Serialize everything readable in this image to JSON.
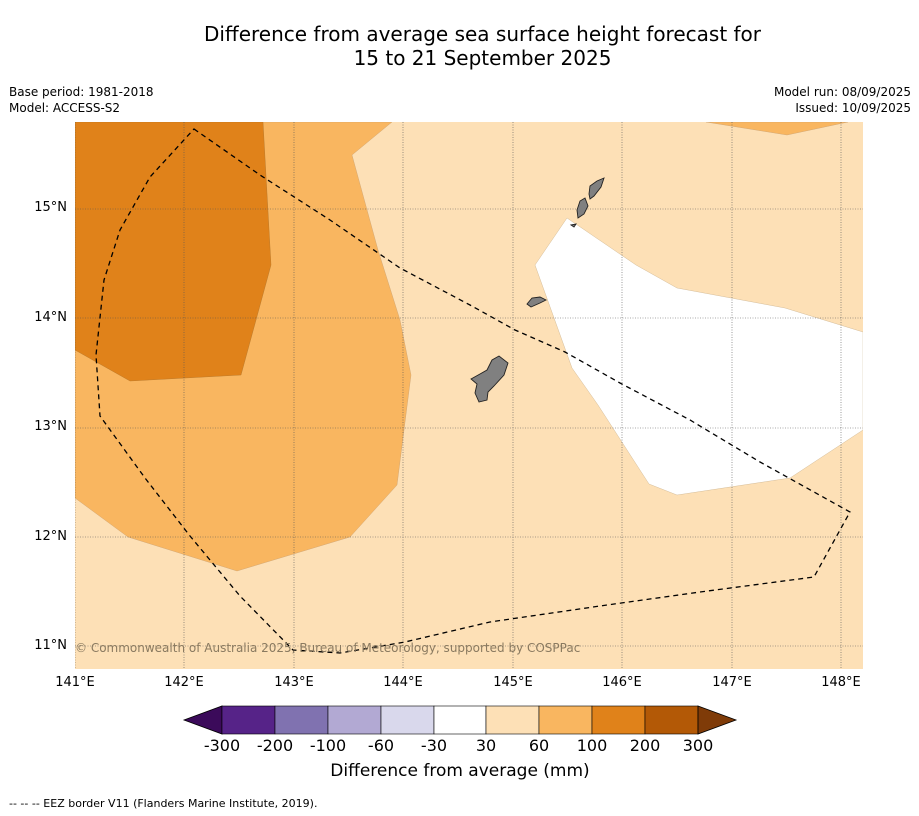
{
  "header": {
    "title_line1": "Difference from average sea surface height forecast for",
    "title_line2": "15 to 21 September 2025",
    "base_period": "Base period: 1981-2018",
    "model": "Model: ACCESS-S2",
    "model_run": "Model run: 08/09/2025",
    "issued": "Issued: 10/09/2025"
  },
  "map": {
    "lat_labels": [
      "15°N",
      "14°N",
      "13°N",
      "12°N",
      "11°N"
    ],
    "lon_labels": [
      "141°E",
      "142°E",
      "143°E",
      "144°E",
      "145°E",
      "146°E",
      "147°E",
      "148°E"
    ],
    "copyright": "© Commonwealth of Australia 2025, Bureau of Meteorology, supported by COSPPac",
    "land_color": "#808080",
    "eez_line": "dashed black"
  },
  "colorbar": {
    "ticks": [
      "-300",
      "-200",
      "-100",
      "-60",
      "-30",
      "30",
      "60",
      "100",
      "200",
      "300"
    ],
    "colors": [
      "#3b0a5a",
      "#562388",
      "#8072b0",
      "#b2a9d3",
      "#d9d8ec",
      "#ffffff",
      "#fde0b6",
      "#f9b660",
      "#e0821a",
      "#b35906",
      "#7f3b08"
    ],
    "title": "Difference from average (mm)"
  },
  "legend": {
    "footnote": "--  --  -- EEZ border V11 (Flanders Marine Institute, 2019)."
  }
}
